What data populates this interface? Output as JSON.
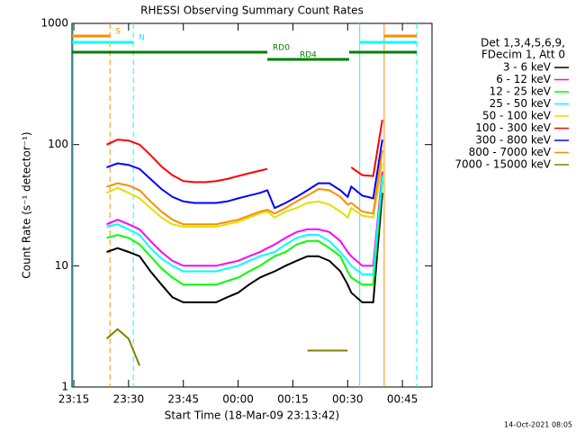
{
  "chart_data": {
    "type": "line",
    "title": "RHESSI Observing Summary Count Rates",
    "xlabel": "Start Time (18-Mar-09 23:13:42)",
    "ylabel": "Count Rate (s⁻¹ detector⁻¹)",
    "footer": "14-Oct-2021 08:05",
    "legend_header": [
      "Det 1,3,4,5,6,9,",
      "FDecim 1, Att 0"
    ],
    "log_y": true,
    "xlim": [
      14.5,
      113.1
    ],
    "ylim": [
      1,
      1000
    ],
    "xticks": [
      {
        "value": 15,
        "label": "23:15"
      },
      {
        "value": 30,
        "label": "23:30"
      },
      {
        "value": 45,
        "label": "23:45"
      },
      {
        "value": 60,
        "label": "00:00"
      },
      {
        "value": 75,
        "label": "00:15"
      },
      {
        "value": 90,
        "label": "00:30"
      },
      {
        "value": 105,
        "label": "00:45"
      }
    ],
    "yticks": [
      1,
      10,
      100,
      1000
    ],
    "x": [
      24,
      27,
      30,
      33,
      36,
      39,
      42,
      45,
      48,
      51,
      54,
      57,
      60,
      63,
      66,
      68,
      70,
      73,
      76,
      79,
      82,
      85,
      88,
      90,
      91,
      94,
      97,
      99.5
    ],
    "series": [
      {
        "name": "3 - 6 keV",
        "color": "#000000",
        "values": [
          13,
          14,
          13,
          12,
          9,
          7,
          5.5,
          5,
          5,
          5,
          5,
          5.5,
          6,
          7,
          8,
          8.5,
          9,
          10,
          11,
          12,
          12,
          11,
          9,
          7,
          6,
          5,
          5,
          40
        ]
      },
      {
        "name": "6 - 12 keV",
        "color": "#ff00ff",
        "values": [
          22,
          24,
          22,
          20,
          16,
          13,
          11,
          10,
          10,
          10,
          10,
          10.5,
          11,
          12,
          13,
          14,
          15,
          17,
          19,
          20,
          20,
          19,
          16,
          13,
          12,
          10,
          10,
          60
        ]
      },
      {
        "name": "12 - 25 keV",
        "color": "#00ff00",
        "values": [
          17,
          18,
          17,
          15,
          12,
          9.5,
          8,
          7,
          7,
          7,
          7,
          7.5,
          8,
          9,
          10,
          11,
          12,
          13,
          15,
          16,
          16,
          14,
          12,
          9,
          8,
          7,
          7,
          50
        ]
      },
      {
        "name": "25 - 50 keV",
        "color": "#00ffff",
        "values": [
          21,
          22,
          20,
          18,
          14,
          11.5,
          10,
          9,
          9,
          9,
          9,
          9.5,
          10,
          11,
          12,
          12.5,
          13,
          15,
          17,
          18,
          18,
          16,
          13,
          11,
          10,
          8.5,
          8.5,
          55
        ]
      },
      {
        "name": "50 - 100 keV",
        "color": "#e0e000",
        "values": [
          40,
          44,
          40,
          36,
          30,
          25,
          22,
          21,
          21,
          21,
          21,
          22,
          23,
          25,
          27,
          28,
          25,
          28,
          30,
          33,
          34,
          32,
          28,
          25,
          30,
          26,
          25,
          70
        ]
      },
      {
        "name": "100 - 300 keV",
        "color": "#ff0000",
        "values": [
          100,
          110,
          108,
          100,
          82,
          66,
          56,
          50,
          49,
          49,
          50,
          52,
          55,
          58,
          61,
          63,
          null,
          null,
          null,
          null,
          null,
          null,
          null,
          null,
          65,
          56,
          55,
          160
        ]
      },
      {
        "name": "300 - 800 keV",
        "color": "#0000ff",
        "values": [
          65,
          70,
          68,
          63,
          52,
          43,
          37,
          34,
          33,
          33,
          33,
          34,
          36,
          38,
          40,
          42,
          30,
          33,
          37,
          42,
          48,
          48,
          42,
          37,
          45,
          38,
          36,
          110
        ]
      },
      {
        "name": "800 - 7000 keV",
        "color": "#ff8c00",
        "values": [
          45,
          48,
          46,
          42,
          34,
          28,
          24,
          22,
          22,
          22,
          22,
          23,
          24,
          26,
          28,
          29,
          27,
          30,
          34,
          38,
          43,
          42,
          37,
          32,
          33,
          28,
          27,
          90
        ]
      },
      {
        "name": "7000 - 15000 keV",
        "color": "#808000",
        "values": [
          2.5,
          3,
          2.5,
          1.5,
          null,
          null,
          null,
          null,
          null,
          null,
          null,
          null,
          null,
          null,
          null,
          null,
          null,
          null,
          null,
          2,
          2,
          2,
          2,
          2,
          null,
          null,
          null,
          null
        ]
      }
    ],
    "vlines": [
      {
        "x": 14.8,
        "color": "#00ffff",
        "dashed": false
      },
      {
        "x": 24.9,
        "color": "#ff8c00",
        "dashed": true
      },
      {
        "x": 31.3,
        "color": "#00ffff",
        "dashed": true
      },
      {
        "x": 93.3,
        "color": "#00ffff",
        "dashed": false
      },
      {
        "x": 100,
        "color": "#ff8c00",
        "dashed": false
      },
      {
        "x": 108.9,
        "color": "#00ffff",
        "dashed": true
      }
    ],
    "bars": [
      {
        "label": "S",
        "color": "#ff8c00",
        "segments": [
          [
            14.5,
            24.9
          ],
          [
            100,
            108.9
          ]
        ],
        "level": 40
      },
      {
        "label": "N",
        "color": "#00ffff",
        "segments": [
          [
            14.5,
            31.3
          ],
          [
            93.3,
            108.9
          ]
        ],
        "level": 47
      },
      {
        "label": "RD0",
        "color": "#008000",
        "segments": [
          [
            14.5,
            68
          ],
          [
            90.4,
            108.9
          ]
        ],
        "level": 58
      },
      {
        "label": "RD4",
        "color": "#008000",
        "segments": [
          [
            68,
            90.4
          ]
        ],
        "level": 66
      }
    ]
  }
}
